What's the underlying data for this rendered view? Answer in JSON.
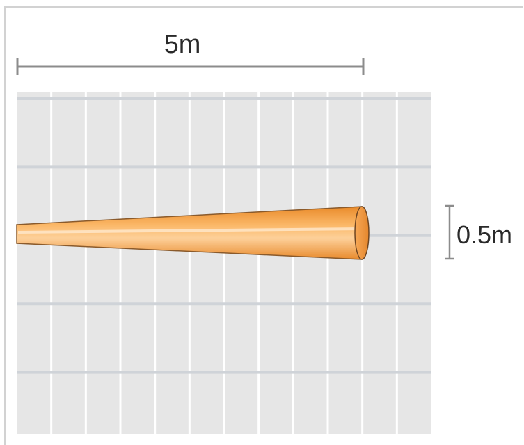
{
  "diagram": {
    "length_label": "5m",
    "width_label": "0.5m",
    "cone_color": "#f5a24a",
    "cone_outline": "#8a5a2b",
    "grid_background": "#e6e6e6",
    "grid_line_color": "#ffffff",
    "dimension_line_color": "#8c8c8c",
    "grid_columns": 12,
    "grid_rows": 5
  }
}
